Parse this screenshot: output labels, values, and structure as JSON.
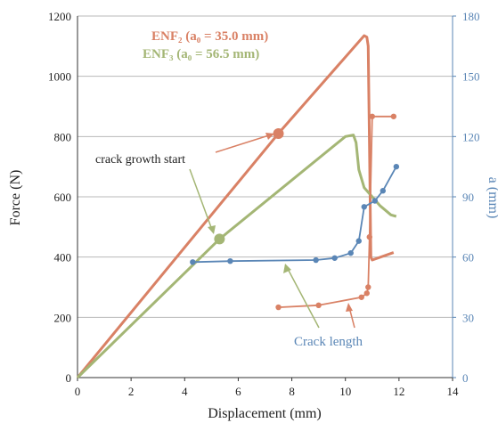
{
  "chart_data": {
    "type": "line",
    "xlabel": "Displacement (mm)",
    "ylabel_left": "Force (N)",
    "ylabel_right": "a (mm)",
    "xlim": [
      0,
      14
    ],
    "ylim_left": [
      0,
      1200
    ],
    "ylim_right": [
      0,
      180
    ],
    "xticks": [
      "0",
      "2",
      "4",
      "6",
      "8",
      "10",
      "12",
      "14"
    ],
    "yticks_left": [
      "0",
      "200",
      "400",
      "600",
      "800",
      "1000",
      "1200"
    ],
    "yticks_right": [
      "0",
      "30",
      "60",
      "90",
      "120",
      "150",
      "180"
    ],
    "grid": "horizontal",
    "legend": [
      {
        "label": "ENF₂ (a₀ = 35.0 mm)",
        "color": "#d98165"
      },
      {
        "label": "ENF₃ (a₀ = 56.5 mm)",
        "color": "#a4b675"
      }
    ],
    "annotations": {
      "crack_growth_start": "crack growth start",
      "crack_length": "Crack length"
    },
    "series": [
      {
        "name": "ENF₂ (a₀ = 35.0 mm)",
        "axis": "left",
        "color": "#d98165",
        "x": [
          0,
          7.5,
          10.7,
          10.8,
          10.85,
          10.95,
          11.0,
          11.8
        ],
        "y": [
          0,
          810,
          1135,
          1130,
          1100,
          400,
          390,
          415
        ]
      },
      {
        "name": "ENF₃ (a₀ = 56.5 mm)",
        "axis": "left",
        "color": "#a4b675",
        "x": [
          0,
          5.3,
          10.0,
          10.3,
          10.4,
          10.5,
          10.7,
          11.0,
          11.3,
          11.7,
          11.9
        ],
        "y": [
          0,
          460,
          800,
          805,
          780,
          690,
          630,
          600,
          570,
          540,
          535
        ]
      },
      {
        "name": "Crack length ENF₂",
        "axis": "right",
        "color": "#d98165",
        "x": [
          7.5,
          9.0,
          10.6,
          10.8,
          10.85,
          10.9,
          11.0,
          11.8
        ],
        "y": [
          35,
          36,
          40,
          42,
          45,
          70,
          130,
          130
        ]
      },
      {
        "name": "Crack length ENF₃",
        "axis": "right",
        "color": "#5a86b6",
        "x": [
          4.3,
          5.7,
          8.9,
          9.6,
          10.2,
          10.5,
          10.7,
          11.1,
          11.4,
          11.9
        ],
        "y": [
          57.5,
          58,
          58.5,
          59.5,
          62,
          68,
          85,
          88,
          93,
          105
        ]
      }
    ],
    "markers": [
      {
        "series": 0,
        "x": 7.5,
        "y": 810
      },
      {
        "series": 1,
        "x": 5.3,
        "y": 460
      }
    ]
  }
}
